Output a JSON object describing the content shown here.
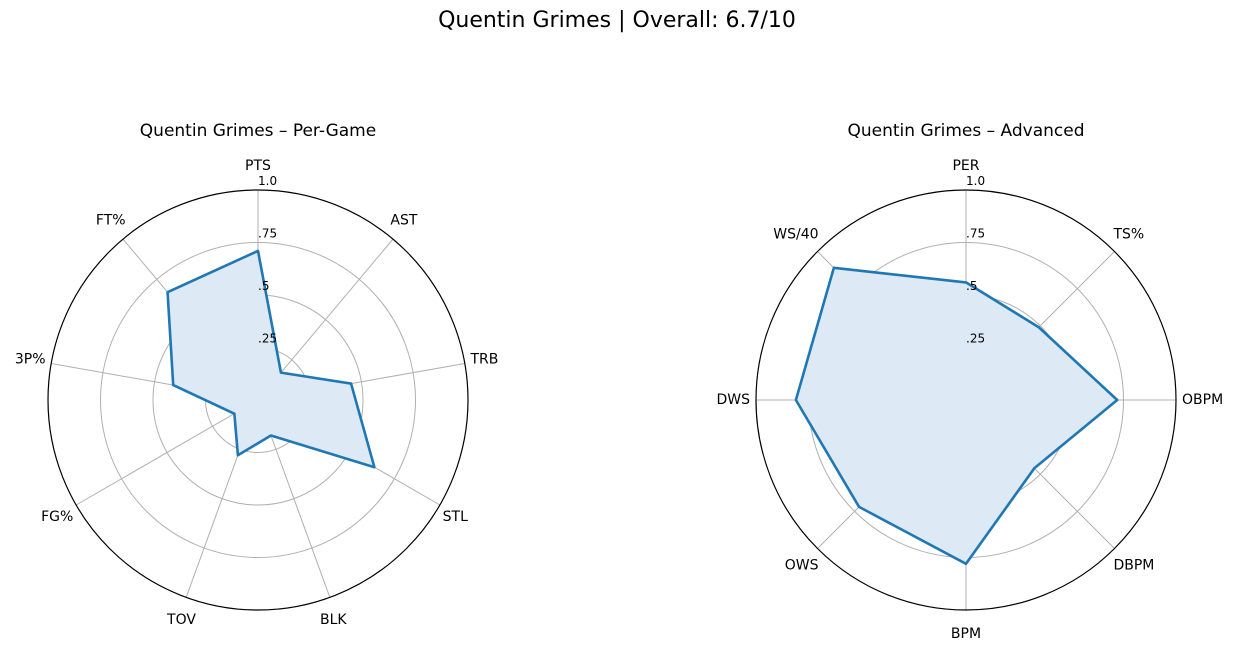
{
  "suptitle": "Quentin Grimes | Overall: 6.7/10",
  "chart_data": [
    {
      "type": "radar",
      "title": "Quentin Grimes – Per-Game",
      "categories": [
        "PTS",
        "AST",
        "TRB",
        "STL",
        "BLK",
        "TOV",
        "FG%",
        "3P%",
        "FT%"
      ],
      "values": [
        0.71,
        0.17,
        0.45,
        0.64,
        0.18,
        0.28,
        0.13,
        0.41,
        0.67
      ],
      "rlim": [
        0,
        1.0
      ],
      "rticks": [
        ".25",
        ".5",
        ".75",
        "1.0"
      ],
      "line_color": "#1f77b4",
      "fill_color": "#dde9f4",
      "grid": true
    },
    {
      "type": "radar",
      "title": "Quentin Grimes – Advanced",
      "categories": [
        "PER",
        "TS%",
        "OBPM",
        "DBPM",
        "BPM",
        "OWS",
        "DWS",
        "WS/40"
      ],
      "values": [
        0.56,
        0.49,
        0.72,
        0.46,
        0.78,
        0.72,
        0.81,
        0.89
      ],
      "rlim": [
        0,
        1.0
      ],
      "rticks": [
        ".25",
        ".5",
        ".75",
        "1.0"
      ],
      "line_color": "#1f77b4",
      "fill_color": "#dde9f4",
      "grid": true
    }
  ]
}
